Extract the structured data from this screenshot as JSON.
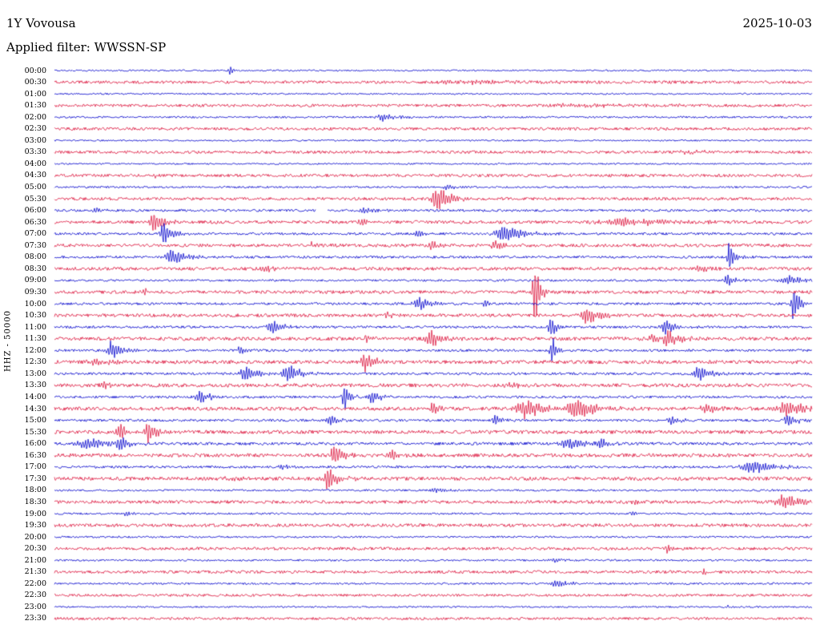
{
  "header": {
    "station": "1Y Vovousa",
    "date": "2025-10-03",
    "filter_label": "Applied filter: WWSSN-SP"
  },
  "axis": {
    "left_label": "HHZ - 50000"
  },
  "colors": {
    "background": "#ffffff",
    "text": "#000000",
    "trace_blue": "#0000cc",
    "trace_red": "#dc143c"
  },
  "chart_data": {
    "type": "line",
    "subtype": "helicorder-seismogram-dayplot",
    "title": "1Y Vovousa",
    "date": "2025-10-03",
    "filter": "WWSSN-SP",
    "ylabel": "HHZ - 50000",
    "row_interval_minutes": 30,
    "time_span": "00:00-23:30",
    "legend_position": "none",
    "grid": false,
    "events_format": "[position_fraction_of_30min_row, amplitude_px, burst_width_px]",
    "rows": [
      {
        "t": "00:00",
        "c": "blue",
        "n": 1.0,
        "ev": [
          [
            0.232,
            6,
            2
          ]
        ]
      },
      {
        "t": "00:30",
        "c": "red",
        "n": 1.8,
        "ev": [
          [
            0.55,
            2,
            40
          ]
        ]
      },
      {
        "t": "01:00",
        "c": "blue",
        "n": 1.0,
        "ev": []
      },
      {
        "t": "01:30",
        "c": "red",
        "n": 1.8,
        "ev": [
          [
            0.7,
            2,
            30
          ]
        ]
      },
      {
        "t": "02:00",
        "c": "blue",
        "n": 1.2,
        "ev": [
          [
            0.433,
            5,
            6
          ]
        ]
      },
      {
        "t": "02:30",
        "c": "red",
        "n": 1.8,
        "ev": []
      },
      {
        "t": "03:00",
        "c": "blue",
        "n": 1.0,
        "ev": []
      },
      {
        "t": "03:30",
        "c": "red",
        "n": 1.8,
        "ev": [
          [
            0.837,
            3,
            8
          ]
        ]
      },
      {
        "t": "04:00",
        "c": "blue",
        "n": 1.0,
        "ev": []
      },
      {
        "t": "04:30",
        "c": "red",
        "n": 1.8,
        "ev": [
          [
            0.132,
            6,
            2
          ]
        ]
      },
      {
        "t": "05:00",
        "c": "blue",
        "n": 1.2,
        "ev": [
          [
            0.52,
            3,
            5
          ]
        ]
      },
      {
        "t": "05:30",
        "c": "red",
        "n": 1.8,
        "ev": [
          [
            0.505,
            18,
            5
          ]
        ]
      },
      {
        "t": "06:00",
        "c": "blue",
        "n": 1.5,
        "ev": [
          [
            0.055,
            5,
            3
          ],
          [
            0.41,
            4,
            4
          ]
        ],
        "gap": [
          0.345,
          0.36
        ]
      },
      {
        "t": "06:30",
        "c": "red",
        "n": 2.0,
        "ev": [
          [
            0.131,
            15,
            4
          ],
          [
            0.405,
            5,
            3
          ],
          [
            0.753,
            5,
            20
          ]
        ]
      },
      {
        "t": "07:00",
        "c": "blue",
        "n": 1.5,
        "ev": [
          [
            0.145,
            14,
            4
          ],
          [
            0.478,
            6,
            3
          ],
          [
            0.594,
            11,
            8
          ]
        ]
      },
      {
        "t": "07:30",
        "c": "red",
        "n": 2.0,
        "ev": [
          [
            0.34,
            4,
            3
          ],
          [
            0.499,
            6,
            3
          ],
          [
            0.583,
            6,
            4
          ]
        ]
      },
      {
        "t": "08:00",
        "c": "blue",
        "n": 1.5,
        "ev": [
          [
            0.154,
            12,
            5
          ],
          [
            0.891,
            26,
            2
          ]
        ]
      },
      {
        "t": "08:30",
        "c": "red",
        "n": 2.0,
        "ev": [
          [
            0.28,
            4,
            4
          ],
          [
            0.85,
            4,
            4
          ]
        ]
      },
      {
        "t": "09:00",
        "c": "blue",
        "n": 1.3,
        "ev": [
          [
            0.888,
            9,
            3
          ],
          [
            0.969,
            6,
            8
          ]
        ]
      },
      {
        "t": "09:30",
        "c": "red",
        "n": 2.0,
        "ev": [
          [
            0.12,
            4,
            4
          ],
          [
            0.634,
            45,
            2
          ]
        ]
      },
      {
        "t": "10:00",
        "c": "blue",
        "n": 1.5,
        "ev": [
          [
            0.482,
            10,
            5
          ],
          [
            0.568,
            6,
            2
          ],
          [
            0.976,
            30,
            2
          ]
        ]
      },
      {
        "t": "10:30",
        "c": "red",
        "n": 2.0,
        "ev": [
          [
            0.44,
            4,
            3
          ],
          [
            0.703,
            12,
            5
          ]
        ]
      },
      {
        "t": "11:00",
        "c": "blue",
        "n": 1.5,
        "ev": [
          [
            0.288,
            10,
            4
          ],
          [
            0.655,
            18,
            2
          ],
          [
            0.806,
            11,
            4
          ]
        ]
      },
      {
        "t": "11:30",
        "c": "red",
        "n": 2.2,
        "ev": [
          [
            0.412,
            6,
            2
          ],
          [
            0.496,
            13,
            4
          ],
          [
            0.79,
            6,
            6
          ],
          [
            0.811,
            10,
            4
          ]
        ]
      },
      {
        "t": "12:00",
        "c": "blue",
        "n": 1.5,
        "ev": [
          [
            0.076,
            12,
            4
          ],
          [
            0.245,
            5,
            3
          ],
          [
            0.657,
            18,
            2
          ]
        ]
      },
      {
        "t": "12:30",
        "c": "red",
        "n": 2.2,
        "ev": [
          [
            0.055,
            4,
            8
          ],
          [
            0.411,
            14,
            4
          ]
        ]
      },
      {
        "t": "13:00",
        "c": "blue",
        "n": 1.5,
        "ev": [
          [
            0.253,
            12,
            5
          ],
          [
            0.309,
            12,
            5
          ],
          [
            0.851,
            10,
            5
          ]
        ]
      },
      {
        "t": "13:30",
        "c": "red",
        "n": 2.2,
        "ev": [
          [
            0.066,
            5,
            3
          ],
          [
            0.6,
            4,
            4
          ]
        ]
      },
      {
        "t": "14:00",
        "c": "blue",
        "n": 1.5,
        "ev": [
          [
            0.192,
            10,
            4
          ],
          [
            0.383,
            20,
            2
          ],
          [
            0.42,
            8,
            4
          ]
        ]
      },
      {
        "t": "14:30",
        "c": "red",
        "n": 2.2,
        "ev": [
          [
            0.499,
            8,
            3
          ],
          [
            0.62,
            14,
            8
          ],
          [
            0.689,
            14,
            8
          ],
          [
            0.858,
            8,
            4
          ],
          [
            0.969,
            10,
            8
          ]
        ]
      },
      {
        "t": "15:00",
        "c": "blue",
        "n": 1.5,
        "ev": [
          [
            0.365,
            8,
            3
          ],
          [
            0.583,
            8,
            3
          ],
          [
            0.814,
            7,
            3
          ],
          [
            0.969,
            8,
            4
          ]
        ]
      },
      {
        "t": "15:30",
        "c": "red",
        "n": 2.2,
        "ev": [
          [
            0.087,
            12,
            3
          ],
          [
            0.124,
            16,
            3
          ]
        ]
      },
      {
        "t": "16:00",
        "c": "blue",
        "n": 1.8,
        "ev": [
          [
            0.044,
            9,
            8
          ],
          [
            0.087,
            10,
            4
          ],
          [
            0.684,
            7,
            12
          ],
          [
            0.721,
            9,
            4
          ]
        ]
      },
      {
        "t": "16:30",
        "c": "red",
        "n": 2.2,
        "ev": [
          [
            0.369,
            20,
            3
          ],
          [
            0.446,
            6,
            4
          ]
        ]
      },
      {
        "t": "17:00",
        "c": "blue",
        "n": 1.5,
        "ev": [
          [
            0.3,
            3,
            4
          ],
          [
            0.922,
            8,
            10
          ]
        ]
      },
      {
        "t": "17:30",
        "c": "red",
        "n": 2.2,
        "ev": [
          [
            0.23,
            3,
            4
          ],
          [
            0.362,
            15,
            4
          ]
        ]
      },
      {
        "t": "18:00",
        "c": "blue",
        "n": 1.2,
        "ev": [
          [
            0.504,
            3,
            4
          ]
        ]
      },
      {
        "t": "18:30",
        "c": "red",
        "n": 2.0,
        "ev": [
          [
            0.763,
            4,
            3
          ],
          [
            0.962,
            10,
            7
          ]
        ]
      },
      {
        "t": "19:00",
        "c": "blue",
        "n": 1.2,
        "ev": [
          [
            0.094,
            5,
            2
          ],
          [
            0.763,
            3,
            2
          ]
        ]
      },
      {
        "t": "19:30",
        "c": "red",
        "n": 2.0,
        "ev": []
      },
      {
        "t": "20:00",
        "c": "blue",
        "n": 1.2,
        "ev": []
      },
      {
        "t": "20:30",
        "c": "red",
        "n": 1.8,
        "ev": [
          [
            0.808,
            6,
            2
          ]
        ]
      },
      {
        "t": "21:00",
        "c": "blue",
        "n": 1.2,
        "ev": [
          [
            0.657,
            3,
            4
          ]
        ]
      },
      {
        "t": "21:30",
        "c": "red",
        "n": 1.8,
        "ev": [
          [
            0.856,
            5,
            2
          ]
        ]
      },
      {
        "t": "22:00",
        "c": "blue",
        "n": 1.2,
        "ev": [
          [
            0.663,
            6,
            6
          ]
        ]
      },
      {
        "t": "22:30",
        "c": "red",
        "n": 1.6,
        "ev": []
      },
      {
        "t": "23:00",
        "c": "blue",
        "n": 1.0,
        "ev": [
          [
            0.889,
            2,
            4
          ]
        ]
      },
      {
        "t": "23:30",
        "c": "red",
        "n": 1.6,
        "ev": []
      }
    ]
  }
}
